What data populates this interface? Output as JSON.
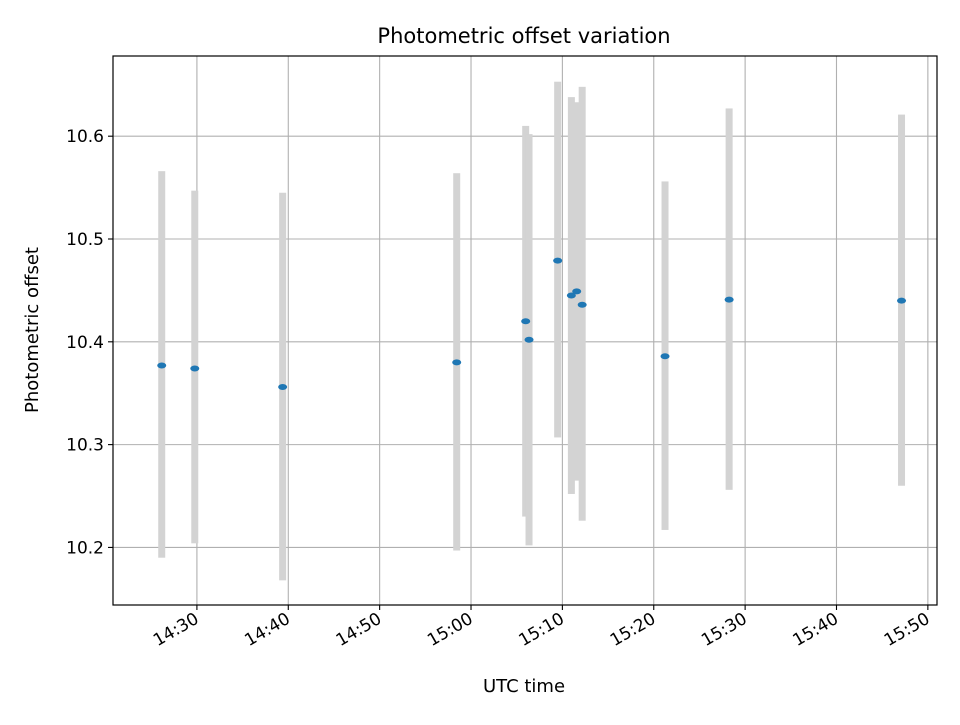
{
  "chart_data": {
    "type": "scatter",
    "title": "Photometric offset variation",
    "xlabel": "UTC time",
    "ylabel": "Photometric offset",
    "x_type": "time",
    "xlim": [
      "14:20:49",
      "15:51:00"
    ],
    "ylim": [
      10.144,
      10.678
    ],
    "x_ticks": [
      "14:30",
      "14:40",
      "14:50",
      "15:00",
      "15:10",
      "15:20",
      "15:30",
      "15:40",
      "15:50"
    ],
    "y_ticks": [
      "10.2",
      "10.3",
      "10.4",
      "10.5",
      "10.6"
    ],
    "y_tick_values": [
      10.2,
      10.3,
      10.4,
      10.5,
      10.6
    ],
    "grid": true,
    "series": [
      {
        "marker_color": "#1f77b4",
        "errorbar_color": "#d3d3d3",
        "points": [
          {
            "x": "14:26:09",
            "y": 10.377,
            "ylow": 10.19,
            "yhigh": 10.566
          },
          {
            "x": "14:29:46",
            "y": 10.374,
            "ylow": 10.204,
            "yhigh": 10.547
          },
          {
            "x": "14:39:23",
            "y": 10.356,
            "ylow": 10.168,
            "yhigh": 10.545
          },
          {
            "x": "14:58:26",
            "y": 10.38,
            "ylow": 10.197,
            "yhigh": 10.564
          },
          {
            "x": "15:05:59",
            "y": 10.42,
            "ylow": 10.23,
            "yhigh": 10.61
          },
          {
            "x": "15:06:21",
            "y": 10.402,
            "ylow": 10.202,
            "yhigh": 10.602
          },
          {
            "x": "15:09:29",
            "y": 10.479,
            "ylow": 10.307,
            "yhigh": 10.653
          },
          {
            "x": "15:10:59",
            "y": 10.445,
            "ylow": 10.252,
            "yhigh": 10.638
          },
          {
            "x": "15:11:34",
            "y": 10.449,
            "ylow": 10.265,
            "yhigh": 10.633
          },
          {
            "x": "15:12:10",
            "y": 10.436,
            "ylow": 10.226,
            "yhigh": 10.648
          },
          {
            "x": "15:21:14",
            "y": 10.386,
            "ylow": 10.217,
            "yhigh": 10.556
          },
          {
            "x": "15:28:15",
            "y": 10.441,
            "ylow": 10.256,
            "yhigh": 10.627
          },
          {
            "x": "15:47:07",
            "y": 10.44,
            "ylow": 10.26,
            "yhigh": 10.621
          }
        ]
      }
    ]
  }
}
